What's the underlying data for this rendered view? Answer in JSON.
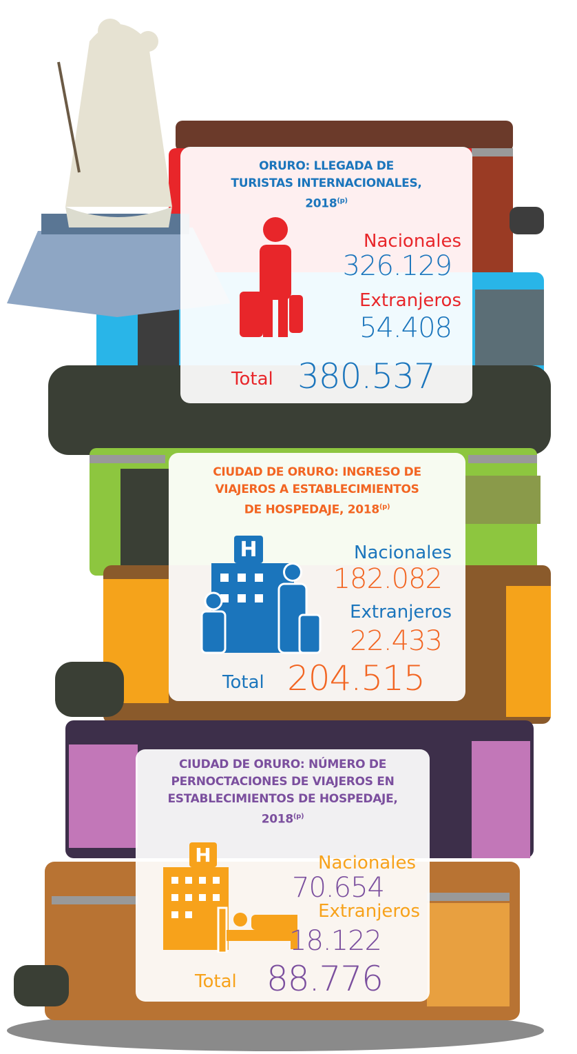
{
  "panels": [
    {
      "title_lines": [
        "ORURO: LLEGADA DE",
        "TURISTAS  INTERNACIONALES,",
        "2018"
      ],
      "title_mark": "(p)",
      "rows": [
        {
          "label": "Nacionales",
          "value": "326.129"
        },
        {
          "label": "Extranjeros",
          "value": "54.408"
        }
      ],
      "total_label": "Total",
      "total_value": "380.537"
    },
    {
      "title_lines": [
        "CIUDAD DE ORURO: INGRESO DE",
        "VIAJEROS A ESTABLECIMIENTOS",
        "DE HOSPEDAJE, 2018"
      ],
      "title_mark": "(p)",
      "rows": [
        {
          "label": "Nacionales",
          "value": "182.082"
        },
        {
          "label": "Extranjeros",
          "value": "22.433"
        }
      ],
      "total_label": "Total",
      "total_value": "204.515"
    },
    {
      "title_lines": [
        "CIUDAD DE ORURO: NÚMERO DE",
        "PERNOCTACIONES DE VIAJEROS EN",
        "ESTABLECIMIENTOS DE HOSPEDAJE,",
        "2018"
      ],
      "title_mark": "(p)",
      "rows": [
        {
          "label": "Nacionales",
          "value": "70.654"
        },
        {
          "label": "Extranjeros",
          "value": "18.122"
        }
      ],
      "total_label": "Total",
      "total_value": "88.776"
    }
  ]
}
